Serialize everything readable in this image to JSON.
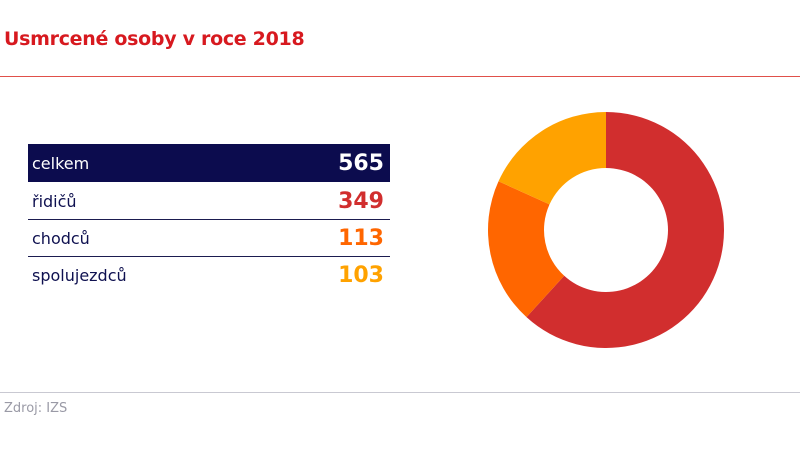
{
  "title": "Usmrcené osoby v roce 2018",
  "source": "Zdroj: IZS",
  "chart_data": {
    "type": "pie",
    "variant": "donut",
    "categories": [
      "řidičů",
      "chodců",
      "spolujezdců"
    ],
    "values": [
      349,
      113,
      103
    ],
    "colors": [
      "#d12e2e",
      "#ff6600",
      "#ffa200"
    ],
    "total_label": "celkem",
    "total": 565,
    "total_color": "#0c0c4e"
  }
}
